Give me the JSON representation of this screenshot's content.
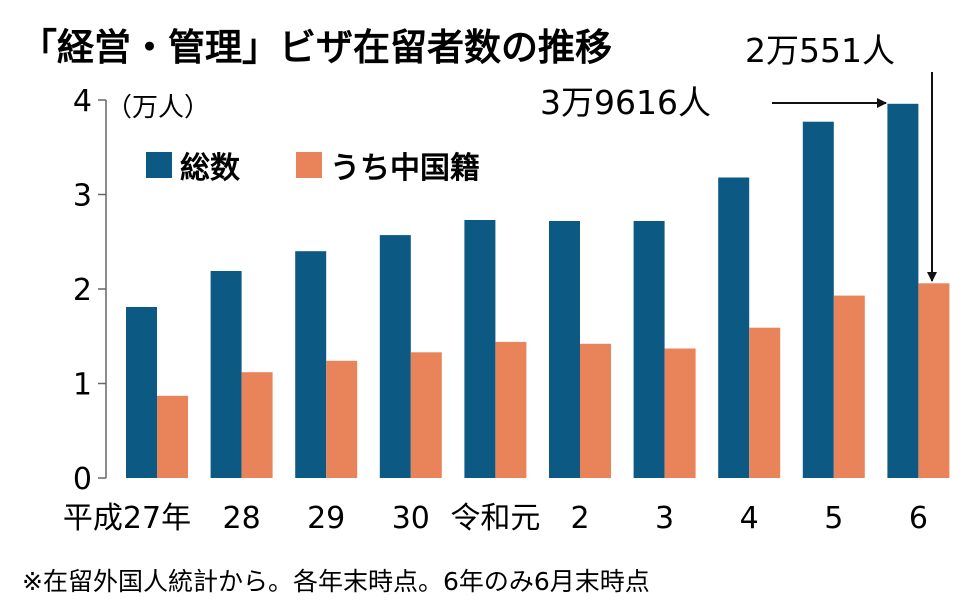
{
  "title": "「経営・管理」ビザ在留者数の推移",
  "annotations": {
    "chinese_2024": "2万551人",
    "total_2024": "3万9616人"
  },
  "note": "※在留外国人統計から。各年末時点。6年のみ6月末時点",
  "colors": {
    "total": "#0c5a84",
    "chinese": "#e98359",
    "axis": "#666666",
    "text": "#111111"
  },
  "chart_data": {
    "type": "bar",
    "title": "「経営・管理」ビザ在留者数の推移",
    "ylabel": "（万人）",
    "xlabel": "",
    "categories": [
      "平成27年",
      "28",
      "29",
      "30",
      "令和元",
      "2",
      "3",
      "4",
      "5",
      "6"
    ],
    "series": [
      {
        "name": "総数",
        "values": [
          1.81,
          2.19,
          2.4,
          2.57,
          2.73,
          2.72,
          2.72,
          3.18,
          3.77,
          3.96
        ]
      },
      {
        "name": "うち中国籍",
        "values": [
          0.87,
          1.12,
          1.24,
          1.33,
          1.44,
          1.42,
          1.37,
          1.59,
          1.93,
          2.06
        ]
      }
    ],
    "ylim": [
      0,
      4
    ],
    "yticks": [
      0,
      1,
      2,
      3,
      4
    ],
    "grid": false,
    "legend": "top-left"
  }
}
